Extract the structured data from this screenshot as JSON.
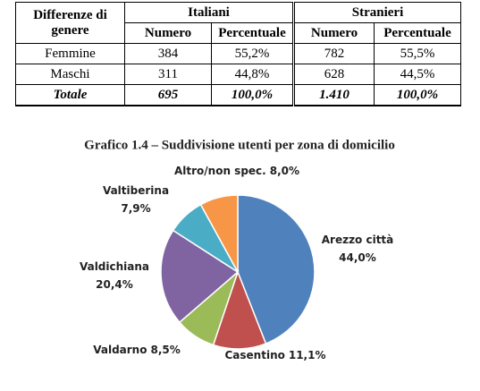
{
  "table": {
    "header_top": [
      "Differenze di genere",
      "Italiani",
      "Stranieri"
    ],
    "header_sub": [
      "Numero",
      "Percentuale",
      "Numero",
      "Percentuale"
    ],
    "rows": [
      [
        "Femmine",
        "384",
        "55,2%",
        "782",
        "55,5%"
      ],
      [
        "Maschi",
        "311",
        "44,8%",
        "628",
        "44,5%"
      ],
      [
        "Totale",
        "695",
        "100,0%",
        "1.410",
        "100,0%"
      ]
    ]
  },
  "chart_data": {
    "type": "pie",
    "title": "Grafico 1.4 – Suddivisione utenti per zona di domicilio",
    "categories": [
      "Arezzo città",
      "Casentino",
      "Valdarno",
      "Valdichiana",
      "Valtiberina",
      "Altro/non spec."
    ],
    "values": [
      44.0,
      11.1,
      8.5,
      20.4,
      7.9,
      8.0
    ],
    "value_labels": [
      "44,0%",
      "11,1%",
      "8,5%",
      "20,4%",
      "7,9%",
      "8,0%"
    ],
    "colors": [
      "#4f81bd",
      "#c0504d",
      "#9bbb59",
      "#8064a2",
      "#4bacc6",
      "#f79646"
    ]
  }
}
